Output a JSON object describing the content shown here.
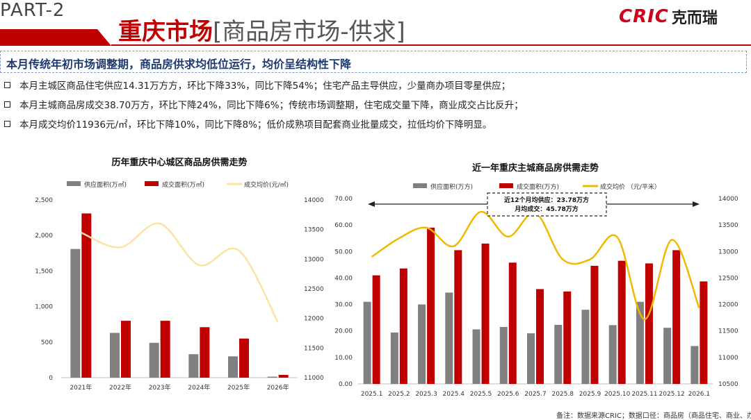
{
  "header": {
    "part_label": "PART-2",
    "title_main": "重庆市场",
    "title_sub": "[商品房市场-供求]",
    "logo_mark": "CRIC",
    "logo_cn": "克而瑞"
  },
  "headline": "本月传统年初市场调整期，商品房供求均低位运行，均价呈结构性下降",
  "bullets": [
    "本月主城区商品住宅供应14.31万方方，环比下降33%，同比下降54%；住宅产品主导供应，少量商办项目零星供应；",
    "本月主城商品房成交38.70万方，环比下降24%，同比下降6%；传统市场调整期，住宅成交量下降，商业成交占比反升；",
    "本月成交均价11936元/㎡，环比下降10%，同比下降8%；低价成熟项目配套商业批量成交，拉低均价下降明显。"
  ],
  "colors": {
    "supply": "#808080",
    "deal": "#c00000",
    "price_left": "#fbe3a0",
    "price_right": "#f2b800"
  },
  "chart_data": [
    {
      "type": "bar",
      "title": "历年重庆中心城区商品房供需走势",
      "categories": [
        "2021年",
        "2022年",
        "2023年",
        "2024年",
        "2025年",
        "2026年"
      ],
      "series": [
        {
          "name": "供应面积(万㎡)",
          "type": "bar",
          "axis": "left",
          "values": [
            1810,
            630,
            490,
            330,
            300,
            14
          ]
        },
        {
          "name": "成交面积(万㎡)",
          "type": "bar",
          "axis": "left",
          "values": [
            2310,
            800,
            800,
            710,
            550,
            39
          ]
        },
        {
          "name": "成交均价(元/㎡)",
          "type": "line",
          "axis": "right",
          "values": [
            13450,
            13200,
            13600,
            12900,
            13150,
            11936
          ]
        }
      ],
      "ylim": [
        0,
        2500
      ],
      "yticks": [
        "0",
        "500",
        "1,000",
        "1,500",
        "2,000",
        "2,500"
      ],
      "y2lim": [
        11000,
        14000
      ],
      "y2ticks": [
        "11000",
        "11500",
        "12000",
        "12500",
        "13000",
        "13500",
        "14000"
      ],
      "legend": "top"
    },
    {
      "type": "bar",
      "title": "近一年重庆主城商品房供需走势",
      "categories": [
        "2025.1",
        "2025.2",
        "2025.3",
        "2025.4",
        "2025.5",
        "2025.6",
        "2025.7",
        "2025.8",
        "2025.9",
        "2025.10",
        "2025.11",
        "2025.12",
        "2026.1"
      ],
      "series": [
        {
          "name": "供应面积(万方)",
          "type": "bar",
          "axis": "left",
          "values": [
            31,
            19.4,
            30,
            34.5,
            20.6,
            21.5,
            19.1,
            22.3,
            28,
            22.2,
            31,
            21.2,
            14.31
          ]
        },
        {
          "name": "成交面积(万方)",
          "type": "bar",
          "axis": "left",
          "values": [
            41,
            43.6,
            59,
            50.5,
            53,
            45.8,
            35.8,
            34.9,
            44.6,
            46.5,
            45.5,
            50.5,
            38.7
          ]
        },
        {
          "name": "成交均价 （元/平米）",
          "type": "line",
          "axis": "right",
          "values": [
            12900,
            13250,
            13450,
            13100,
            13750,
            13280,
            13730,
            12850,
            12850,
            13270,
            11720,
            13220,
            11936
          ]
        }
      ],
      "ylim": [
        0,
        70
      ],
      "yticks": [
        "0.00",
        "10.00",
        "20.00",
        "30.00",
        "40.00",
        "50.00",
        "60.00",
        "70.00"
      ],
      "y2lim": [
        10500,
        14000
      ],
      "y2ticks": [
        "10500",
        "11000",
        "11500",
        "12000",
        "12500",
        "13000",
        "13500",
        "14000"
      ],
      "annotation": [
        "近12个月均供应：23.78万方",
        "月均成交：45.78万方"
      ],
      "legend": "top"
    }
  ],
  "footnote": "备注：数据来源CRIC；数据口径：商品房（商品住宅、商业、办公数据）"
}
